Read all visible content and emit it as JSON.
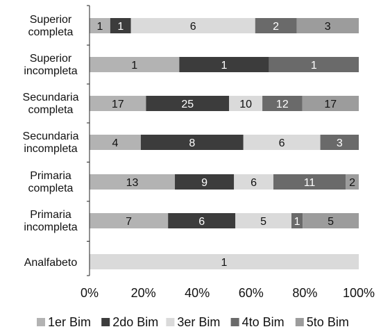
{
  "chart_data": {
    "type": "bar",
    "orientation": "horizontal",
    "stacked": "percent",
    "title": "",
    "xlabel": "",
    "ylabel": "",
    "xlim": [
      0,
      100
    ],
    "x_ticks": [
      "0%",
      "20%",
      "40%",
      "60%",
      "80%",
      "100%"
    ],
    "grid": false,
    "legend_position": "bottom",
    "categories": [
      "Superior completa",
      "Superior incompleta",
      "Secundaria completa",
      "Secundaria incompleta",
      "Primaria completa",
      "Primaria incompleta",
      "Analfabeto"
    ],
    "series": [
      {
        "name": "1er Bim",
        "color": "#b3b3b3",
        "values": [
          1,
          1,
          17,
          4,
          13,
          7,
          0
        ]
      },
      {
        "name": "2do Bim",
        "color": "#3c3c3c",
        "values": [
          1,
          1,
          25,
          8,
          9,
          6,
          0
        ]
      },
      {
        "name": "3er Bim",
        "color": "#dadada",
        "values": [
          6,
          0,
          10,
          6,
          6,
          5,
          1
        ]
      },
      {
        "name": "4to Bim",
        "color": "#6a6a6a",
        "values": [
          2,
          1,
          12,
          3,
          11,
          1,
          0
        ]
      },
      {
        "name": "5to Bim",
        "color": "#9c9c9c",
        "values": [
          3,
          0,
          17,
          0,
          2,
          5,
          0
        ]
      }
    ]
  }
}
